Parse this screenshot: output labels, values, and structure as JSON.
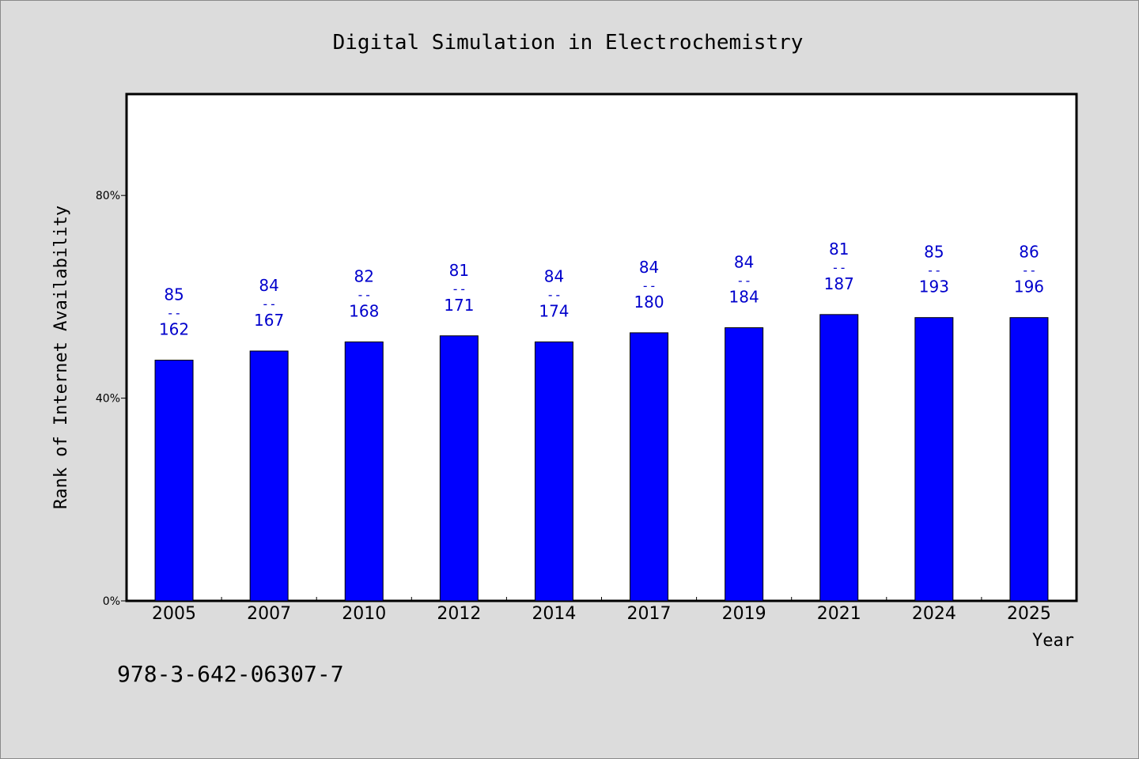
{
  "chart_data": {
    "type": "bar",
    "title": "Digital Simulation in Electrochemistry",
    "xlabel": "Year",
    "ylabel": "Rank of Internet Availability",
    "yticks": [
      "0%",
      "40%",
      "80%"
    ],
    "ylim": [
      0,
      100
    ],
    "categories": [
      "2005",
      "2007",
      "2010",
      "2012",
      "2014",
      "2017",
      "2019",
      "2021",
      "2024",
      "2025"
    ],
    "values": [
      47.5,
      49.3,
      51.1,
      52.3,
      51.1,
      52.9,
      53.9,
      56.5,
      55.9,
      55.9
    ],
    "ranks": [
      "85",
      "84",
      "82",
      "81",
      "84",
      "84",
      "84",
      "81",
      "85",
      "86"
    ],
    "totals": [
      "162",
      "167",
      "168",
      "171",
      "174",
      "180",
      "184",
      "187",
      "193",
      "196"
    ],
    "separator": "--",
    "bar_color": "#0000ff",
    "label_color": "#0000cc",
    "grid": false
  },
  "footer": {
    "isbn": "978-3-642-06307-7"
  }
}
